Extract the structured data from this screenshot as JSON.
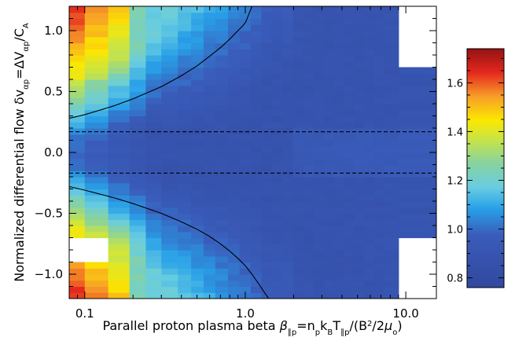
{
  "chart_data": {
    "type": "heatmap",
    "title": "",
    "xlabel": {
      "parts": [
        {
          "t": "Parallel proton plasma beta  "
        },
        {
          "t": "β",
          "italic": true
        },
        {
          "t": "∥p",
          "sub": true
        },
        {
          "t": "=n"
        },
        {
          "t": "p",
          "sub": true
        },
        {
          "t": "k"
        },
        {
          "t": "B",
          "sub": true
        },
        {
          "t": "T"
        },
        {
          "t": "∥p",
          "sub": true
        },
        {
          "t": "/(B"
        },
        {
          "t": "2",
          "sup": true
        },
        {
          "t": "/2"
        },
        {
          "t": "μ",
          "italic": true
        },
        {
          "t": "o",
          "sub": true
        },
        {
          "t": ")"
        }
      ]
    },
    "ylabel": {
      "parts": [
        {
          "t": "Normalized differential flow  "
        },
        {
          "t": "δ"
        },
        {
          "t": "v"
        },
        {
          "t": "αp",
          "sub": true
        },
        {
          "t": "=ΔV"
        },
        {
          "t": "αp",
          "sub": true
        },
        {
          "t": "/C"
        },
        {
          "t": "A",
          "sub": true
        }
      ]
    },
    "x_scale": "log",
    "xlim": [
      0.08,
      15.5
    ],
    "ylim": [
      -1.2,
      1.2
    ],
    "x_ticks": [
      {
        "value": 0.1,
        "label": "0.1"
      },
      {
        "value": 1.0,
        "label": "1.0"
      },
      {
        "value": 10.0,
        "label": "10.0"
      }
    ],
    "y_ticks": [
      {
        "value": -1.0,
        "label": "−1.0"
      },
      {
        "value": -0.5,
        "label": "−0.5"
      },
      {
        "value": 0.0,
        "label": "0.0"
      },
      {
        "value": 0.5,
        "label": "0.5"
      },
      {
        "value": 1.0,
        "label": "1.0"
      }
    ],
    "colorbar": {
      "range": [
        0.76,
        1.74
      ],
      "ticks": [
        {
          "value": 0.8,
          "label": "0.8"
        },
        {
          "value": 1.0,
          "label": "1.0"
        },
        {
          "value": 1.2,
          "label": "1.2"
        },
        {
          "value": 1.4,
          "label": "1.4"
        },
        {
          "value": 1.6,
          "label": "1.6"
        }
      ],
      "placement": "right"
    },
    "x_bin_edges": [
      0.08,
      0.1,
      0.14,
      0.19,
      0.24,
      0.3,
      0.38,
      0.46,
      0.55,
      0.65,
      0.78,
      0.92,
      1.08,
      1.26,
      1.46,
      1.7,
      1.98,
      2.3,
      2.66,
      3.08,
      3.56,
      4.12,
      4.76,
      5.5,
      6.36,
      7.34,
      9.0,
      15.5
    ],
    "y_bin_count": 48,
    "cells_description": "Color value per (beta bin, dv bin); base level ~0.88 in the central region, rising toward the two curves and highest at low beta and large |dv|. Missing cells are blank.",
    "cells_rule": {
      "base": 0.88,
      "missing": [
        {
          "x_min": 0.08,
          "x_max": 0.14,
          "y_min": -0.9,
          "y_max": -0.7
        },
        {
          "x_min": 9.0,
          "x_max": 15.5,
          "y_min": 0.7,
          "y_max": 1.2
        },
        {
          "x_min": 9.0,
          "x_max": 15.5,
          "y_min": -1.2,
          "y_max": -0.7
        }
      ]
    },
    "curves": [
      {
        "name": "",
        "style": "solid",
        "x": [
          0.08,
          0.1,
          0.15,
          0.2,
          0.3,
          0.4,
          0.5,
          0.6,
          0.7,
          0.8,
          0.9,
          1.0,
          1.1
        ],
        "y": [
          0.28,
          0.31,
          0.38,
          0.44,
          0.54,
          0.63,
          0.71,
          0.79,
          0.86,
          0.93,
          1.0,
          1.06,
          1.2
        ]
      },
      {
        "name": "",
        "style": "solid",
        "x": [
          0.08,
          0.1,
          0.15,
          0.2,
          0.3,
          0.4,
          0.5,
          0.6,
          0.7,
          0.8,
          0.9,
          1.0,
          1.1,
          1.2,
          1.3,
          1.4
        ],
        "y": [
          -0.28,
          -0.31,
          -0.37,
          -0.42,
          -0.5,
          -0.57,
          -0.63,
          -0.69,
          -0.75,
          -0.81,
          -0.87,
          -0.93,
          -1.0,
          -1.07,
          -1.14,
          -1.2
        ]
      },
      {
        "name": "",
        "style": "dashed",
        "x": [
          0.08,
          15.5
        ],
        "y": [
          0.17,
          0.17
        ]
      },
      {
        "name": "",
        "style": "dashed",
        "x": [
          0.08,
          15.5
        ],
        "y": [
          -0.17,
          -0.17
        ]
      }
    ]
  }
}
